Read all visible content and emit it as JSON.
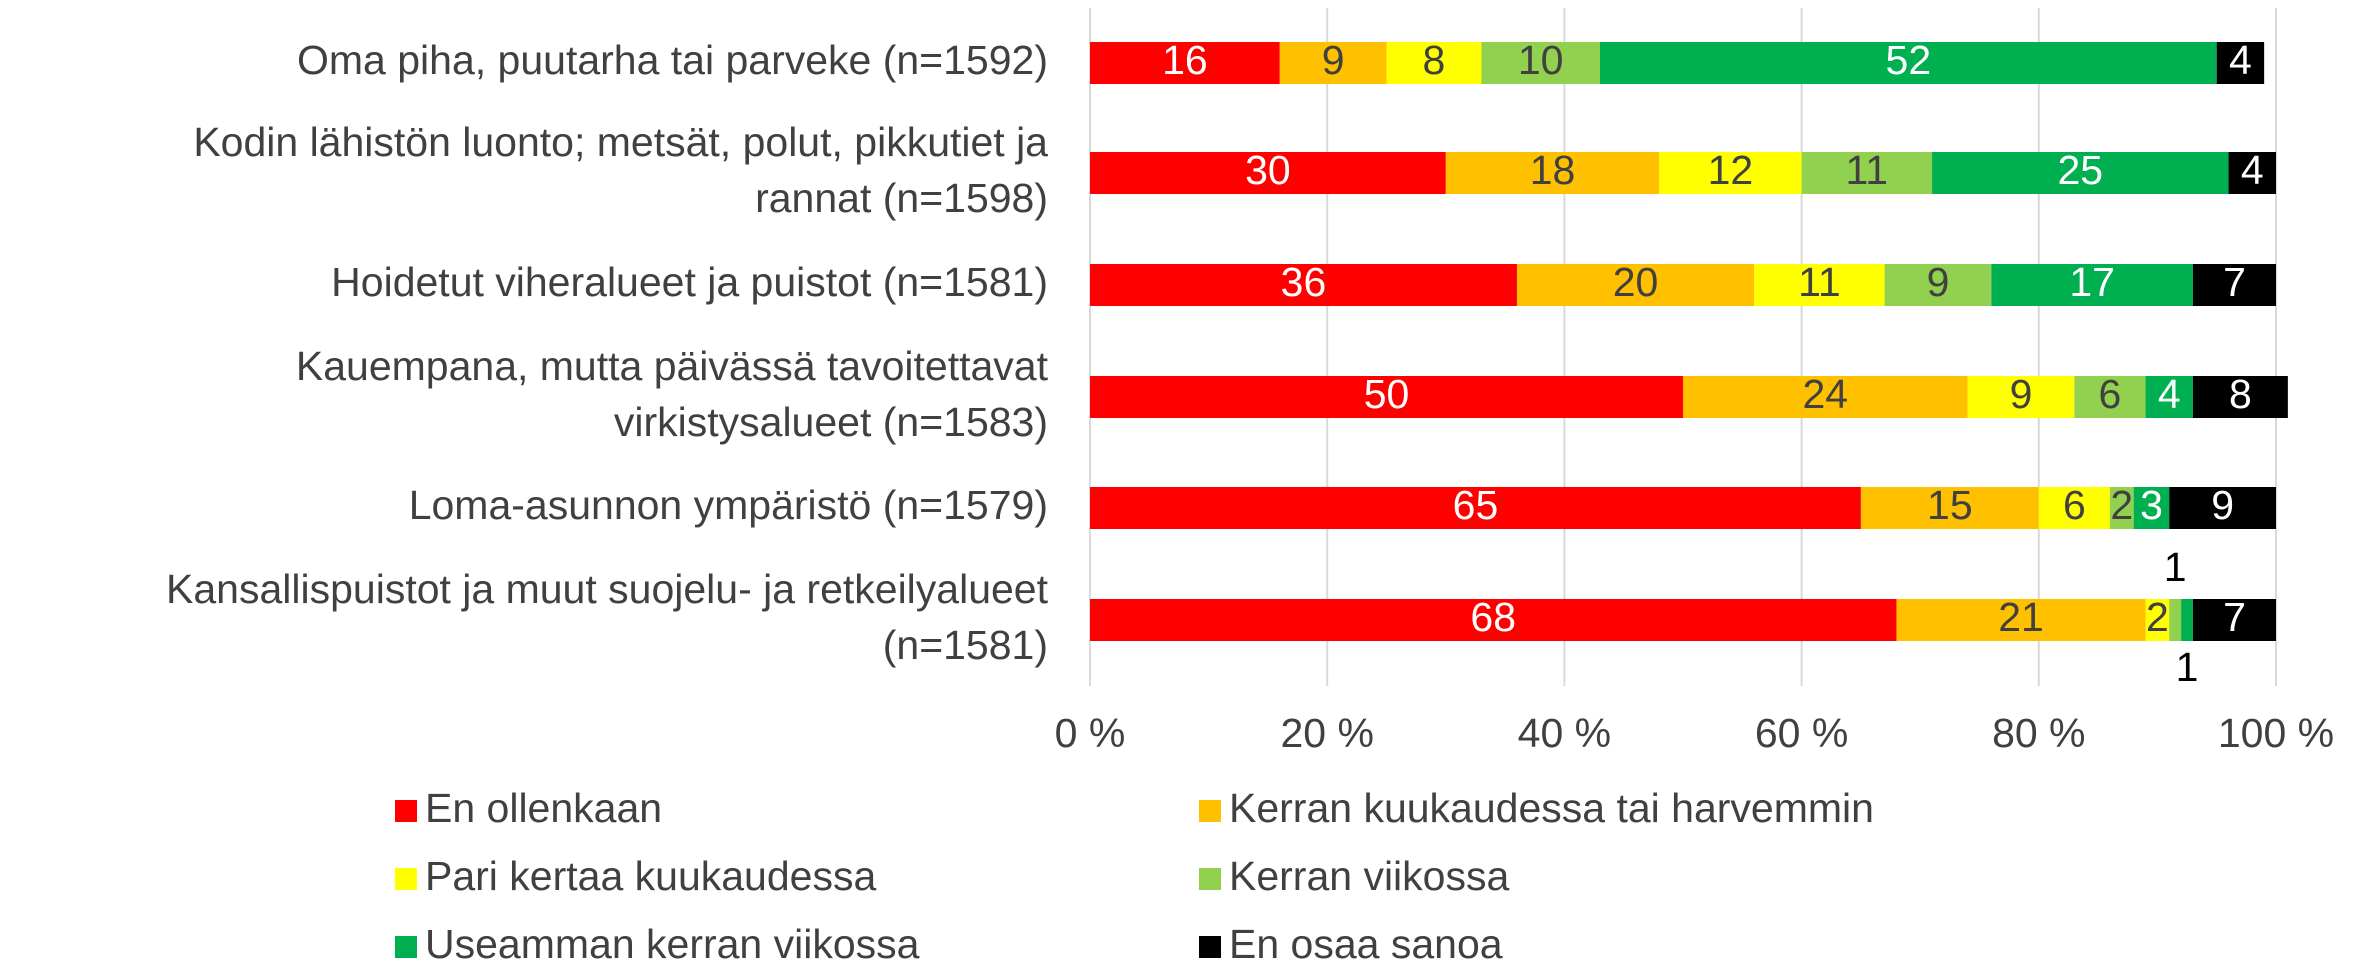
{
  "chart_data": {
    "type": "stacked_bar_horizontal",
    "categories": [
      "Oma piha, puutarha tai parveke (n=1592)",
      "Kodin lähistön luonto; metsät, polut, pikkutiet ja\nrannat (n=1598)",
      "Hoidetut viheralueet ja puistot (n=1581)",
      "Kauempana, mutta päivässä tavoitettavat\nvirkistysalueet (n=1583)",
      "Loma-asunnon ympäristö (n=1579)",
      "Kansallispuistot ja muut suojelu- ja retkeilyalueet\n(n=1581)"
    ],
    "series": [
      {
        "name": "En ollenkaan",
        "color": "#ff0000",
        "values": [
          16,
          30,
          36,
          50,
          65,
          68
        ]
      },
      {
        "name": "Kerran kuukaudessa tai harvemmin",
        "color": "#ffc000",
        "values": [
          9,
          18,
          20,
          24,
          15,
          21
        ]
      },
      {
        "name": "Pari kertaa kuukaudessa",
        "color": "#ffff00",
        "values": [
          8,
          12,
          11,
          9,
          6,
          2
        ]
      },
      {
        "name": "Kerran viikossa",
        "color": "#92d050",
        "values": [
          10,
          11,
          9,
          6,
          2,
          1
        ]
      },
      {
        "name": "Useamman kerran viikossa",
        "color": "#00b050",
        "values": [
          52,
          25,
          17,
          4,
          3,
          1
        ]
      },
      {
        "name": "En osaa sanoa",
        "color": "#000000",
        "values": [
          4,
          4,
          7,
          8,
          9,
          7
        ]
      }
    ],
    "xlim": [
      0,
      100
    ],
    "xticks": [
      {
        "value": 0,
        "label": "0 %"
      },
      {
        "value": 20,
        "label": "20 %"
      },
      {
        "value": 40,
        "label": "40 %"
      },
      {
        "value": 60,
        "label": "60 %"
      },
      {
        "value": 80,
        "label": "80 %"
      },
      {
        "value": 100,
        "label": "100 %"
      }
    ],
    "grid": true,
    "legend": "bottom"
  }
}
